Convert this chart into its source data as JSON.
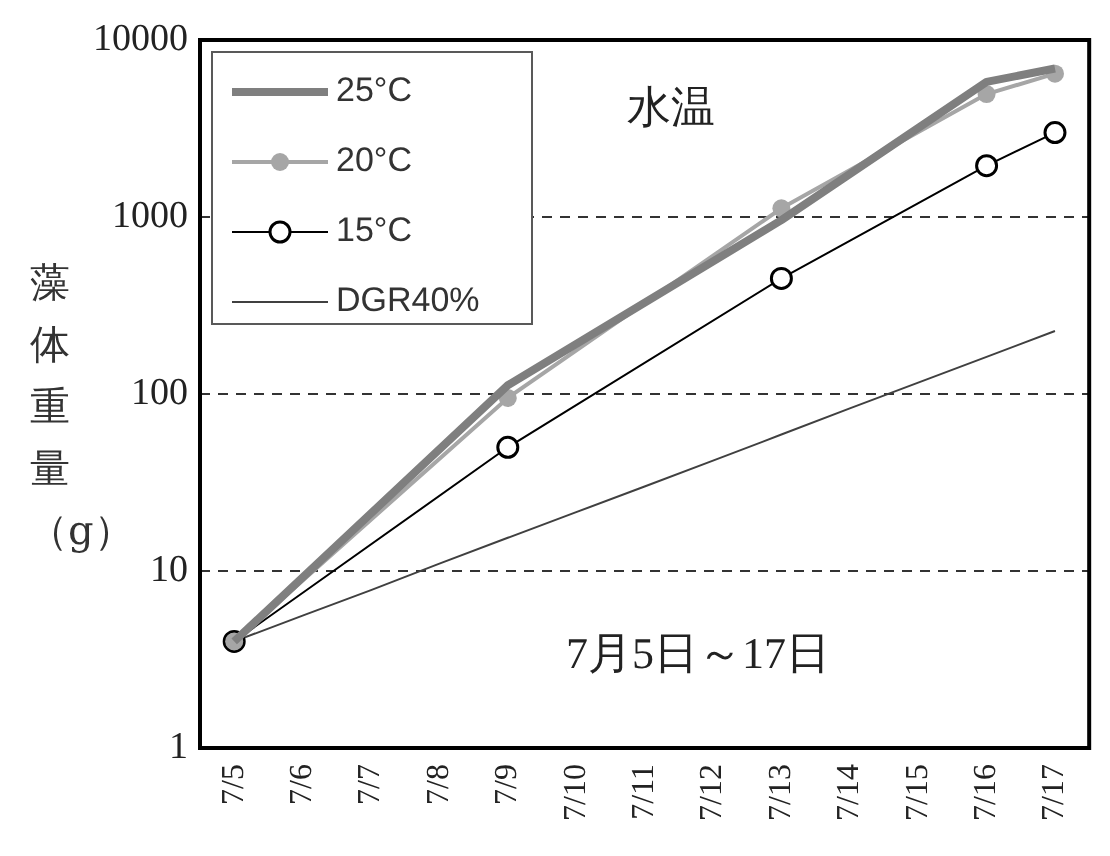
{
  "chart_data": {
    "type": "line",
    "ylabel": "藻体重量（g）",
    "categories": [
      "7/5",
      "7/6",
      "7/7",
      "7/8",
      "7/9",
      "7/10",
      "7/11",
      "7/12",
      "7/13",
      "7/14",
      "7/15",
      "7/16",
      "7/17"
    ],
    "series": [
      {
        "name": "25°C",
        "color": "#7f7f7f",
        "marker": "none",
        "values": [
          4,
          null,
          null,
          null,
          112,
          null,
          null,
          null,
          960,
          null,
          null,
          5800,
          6900
        ]
      },
      {
        "name": "20°C",
        "color": "#a6a6a6",
        "marker": "circle",
        "values": [
          4,
          null,
          null,
          null,
          95,
          null,
          null,
          null,
          1120,
          null,
          null,
          4950,
          6450
        ]
      },
      {
        "name": "15°C",
        "color": "#000000",
        "marker": "circle",
        "values": [
          4,
          null,
          null,
          null,
          50,
          null,
          null,
          null,
          450,
          null,
          null,
          1950,
          3000
        ]
      },
      {
        "name": "DGR40%",
        "color": "#404040",
        "marker": "none",
        "values": [
          4,
          5.6,
          7.8,
          11,
          15.4,
          21.5,
          30,
          42,
          59,
          83,
          116,
          162,
          227
        ]
      }
    ],
    "log": true,
    "ylim": [
      1,
      10000
    ],
    "yticks": [
      1,
      10,
      100,
      1000,
      10000
    ],
    "grid": "y",
    "legend": "top left",
    "annotations": [
      "水温",
      "7月5日～17日"
    ]
  }
}
